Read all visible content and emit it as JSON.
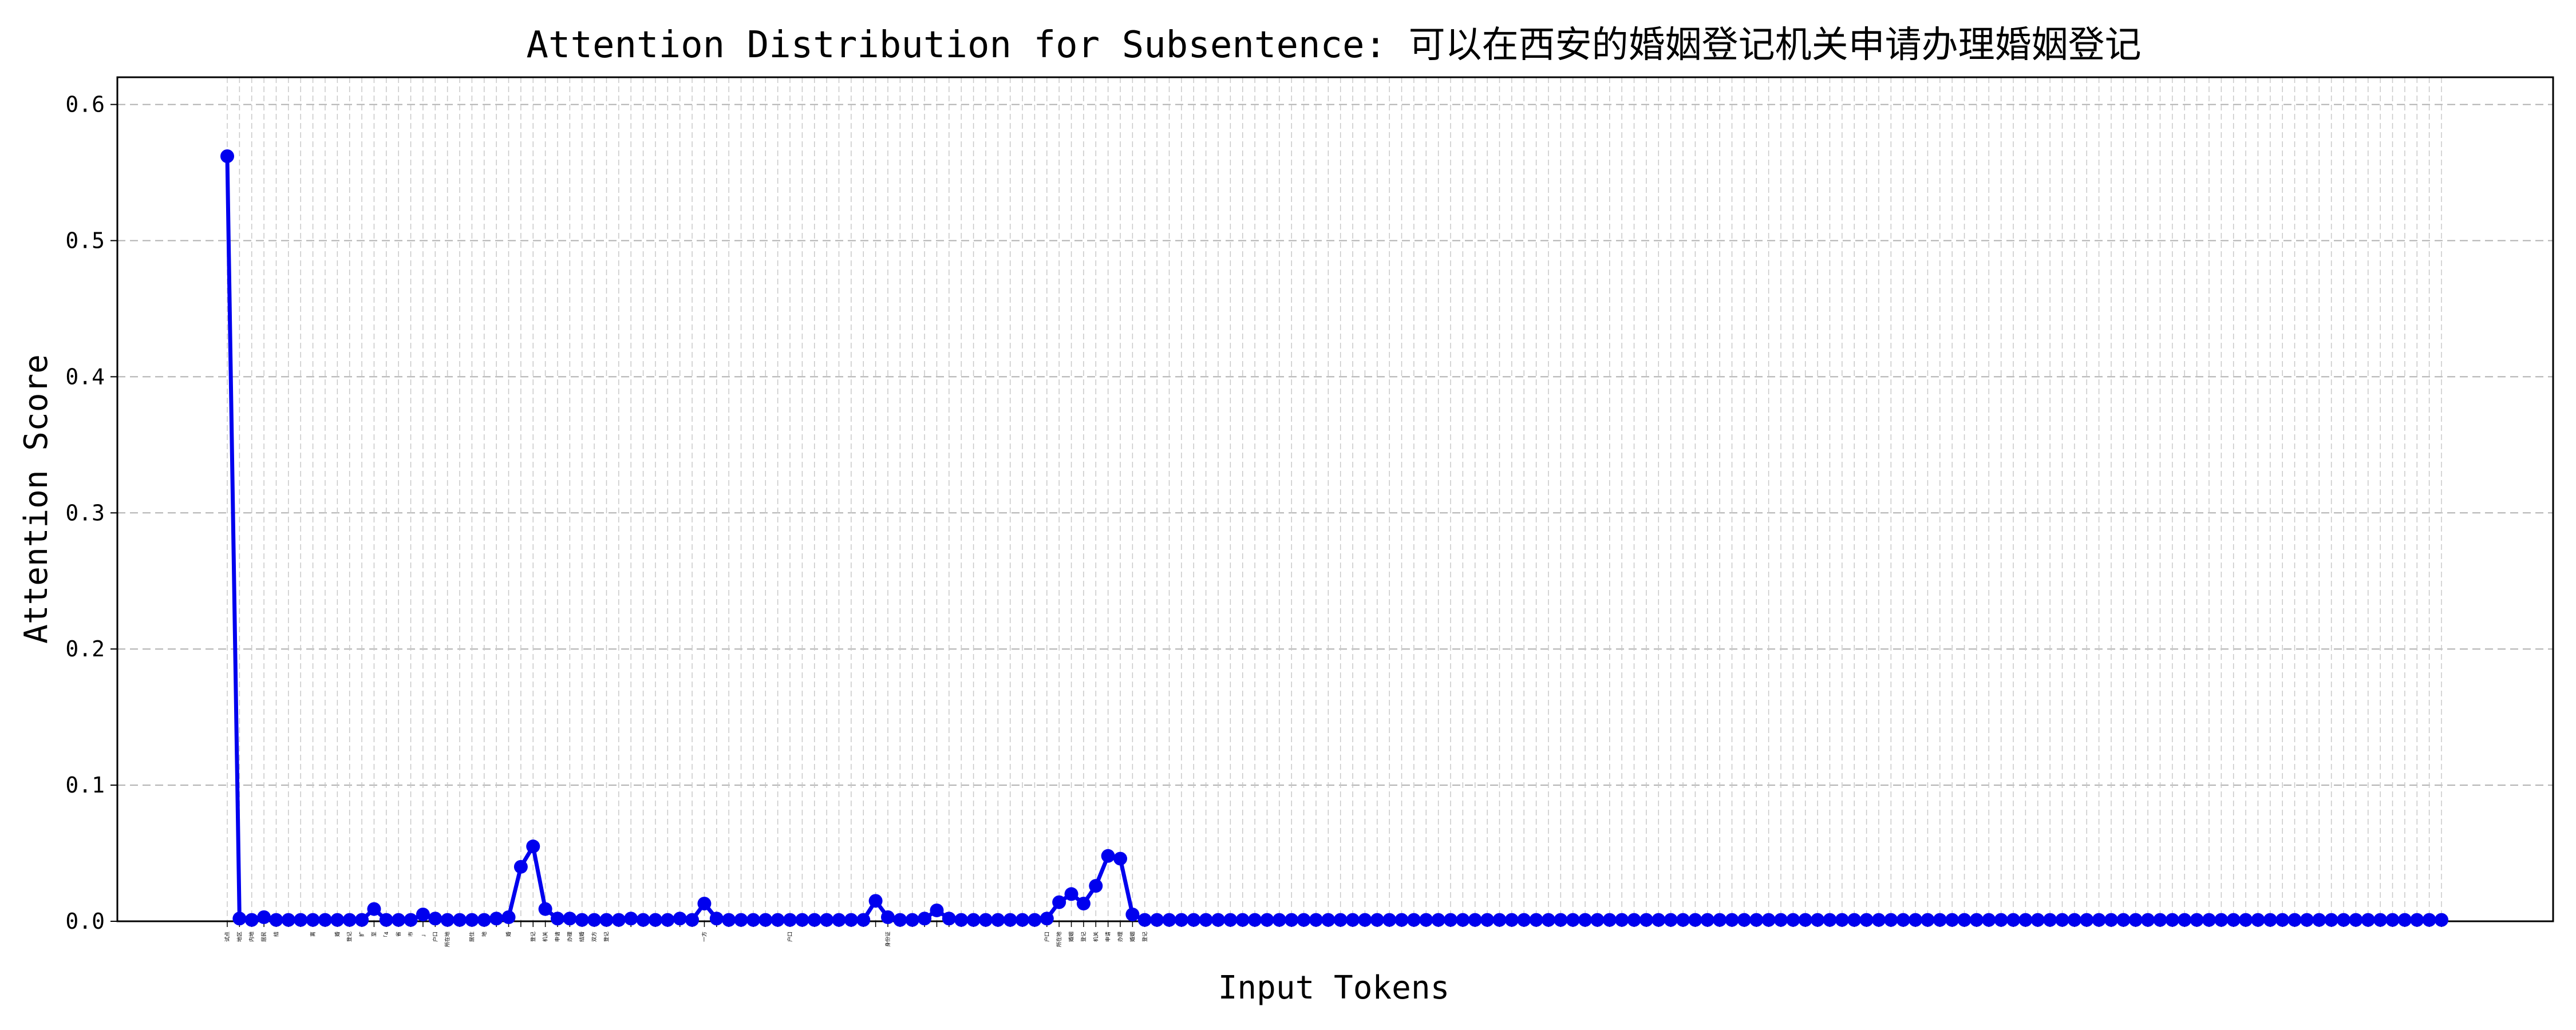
{
  "chart_data": {
    "type": "line",
    "title": "Attention Distribution for Subsentence: 可以在西安的婚姻登记机关申请办理婚姻登记",
    "xlabel": "Input Tokens",
    "ylabel": "Attention Score",
    "ylim": [
      0,
      0.62
    ],
    "yticks": [
      0.0,
      0.1,
      0.2,
      0.3,
      0.4,
      0.5,
      0.6
    ],
    "ytick_labels": [
      "0.0",
      "0.1",
      "0.2",
      "0.3",
      "0.4",
      "0.5",
      "0.6"
    ],
    "grid": true,
    "line_color": "#0000ee",
    "x_tick_labels": [
      "试点",
      "地区",
      "内地",
      "居民",
      "结",
      "",
      "",
      "离",
      "",
      "婚",
      "登记",
      "扩",
      "至",
      "「4",
      "省",
      "市",
      "」",
      "户口",
      "所在地",
      "",
      "居住",
      "地",
      "",
      "婚",
      "",
      "登记",
      "机关",
      "申请",
      "办理",
      "结婚",
      "双方",
      "登记",
      "",
      "",
      "",
      "",
      "",
      "",
      "",
      "一方",
      "",
      "",
      "",
      "",
      "",
      "",
      "户口",
      "",
      "",
      "",
      "",
      "",
      "",
      "",
      "身份证",
      "",
      "",
      "",
      "",
      "",
      "",
      "",
      "",
      "",
      "",
      "",
      "",
      "户口",
      "所在地",
      "婚姻",
      "登记",
      "机关",
      "申请",
      "办理",
      "婚姻",
      "登记",
      "",
      "",
      "",
      "",
      "",
      "",
      "",
      "",
      "",
      "",
      "",
      "",
      "",
      "",
      "",
      "",
      "",
      "",
      "",
      "",
      "",
      "",
      "",
      "",
      "",
      "",
      "",
      "",
      "",
      "",
      "",
      "",
      "",
      "",
      "",
      "",
      "",
      "",
      "",
      "",
      "",
      "",
      "",
      "",
      "",
      "",
      "",
      "",
      "",
      "",
      "",
      "",
      "",
      "",
      "",
      "",
      "",
      "",
      "",
      "",
      "",
      "",
      "",
      "",
      "",
      "",
      "",
      "",
      "",
      "",
      "",
      "",
      "",
      "",
      "",
      "",
      "",
      "",
      "",
      "",
      "",
      "",
      "",
      "",
      "",
      "",
      "",
      "",
      "",
      "",
      "",
      "",
      "",
      "",
      "",
      "",
      "",
      "",
      "",
      "",
      "",
      "",
      "",
      "",
      "",
      "",
      "",
      ""
    ],
    "series": [
      {
        "values": [
          0.562,
          0.002,
          0.001,
          0.003,
          0.001,
          0.001,
          0.001,
          0.001,
          0.001,
          0.001,
          0.001,
          0.001,
          0.009,
          0.001,
          0.001,
          0.001,
          0.005,
          0.002,
          0.001,
          0.001,
          0.001,
          0.001,
          0.002,
          0.003,
          0.04,
          0.055,
          0.009,
          0.002,
          0.002,
          0.001,
          0.001,
          0.001,
          0.001,
          0.002,
          0.001,
          0.001,
          0.001,
          0.002,
          0.001,
          0.013,
          0.002,
          0.001,
          0.001,
          0.001,
          0.001,
          0.001,
          0.001,
          0.001,
          0.001,
          0.001,
          0.001,
          0.001,
          0.001,
          0.015,
          0.003,
          0.001,
          0.001,
          0.002,
          0.008,
          0.002,
          0.001,
          0.001,
          0.001,
          0.001,
          0.001,
          0.001,
          0.001,
          0.002,
          0.014,
          0.02,
          0.013,
          0.026,
          0.048,
          0.046,
          0.005,
          0.001,
          0.001,
          0.001,
          0.001,
          0.001,
          0.001,
          0.001,
          0.001,
          0.001,
          0.001,
          0.001,
          0.001,
          0.001,
          0.001,
          0.001,
          0.001,
          0.001,
          0.001,
          0.001,
          0.001,
          0.001,
          0.001,
          0.001,
          0.001,
          0.001,
          0.001,
          0.001,
          0.001,
          0.001,
          0.001,
          0.001,
          0.001,
          0.001,
          0.001,
          0.001,
          0.001,
          0.001,
          0.001,
          0.001,
          0.001,
          0.001,
          0.001,
          0.001,
          0.001,
          0.001,
          0.001,
          0.001,
          0.001,
          0.001,
          0.001,
          0.001,
          0.001,
          0.001,
          0.001,
          0.001,
          0.001,
          0.001,
          0.001,
          0.001,
          0.001,
          0.001,
          0.001,
          0.001,
          0.001,
          0.001,
          0.001,
          0.001,
          0.001,
          0.001,
          0.001,
          0.001,
          0.001,
          0.001,
          0.001,
          0.001,
          0.001,
          0.001,
          0.001,
          0.001,
          0.001,
          0.001,
          0.001,
          0.001,
          0.001,
          0.001,
          0.001,
          0.001,
          0.001,
          0.001,
          0.001,
          0.001,
          0.001,
          0.001,
          0.001,
          0.001,
          0.001,
          0.001,
          0.001,
          0.001,
          0.001,
          0.001,
          0.001,
          0.001,
          0.001,
          0.001,
          0.001,
          0.001
        ]
      }
    ]
  }
}
